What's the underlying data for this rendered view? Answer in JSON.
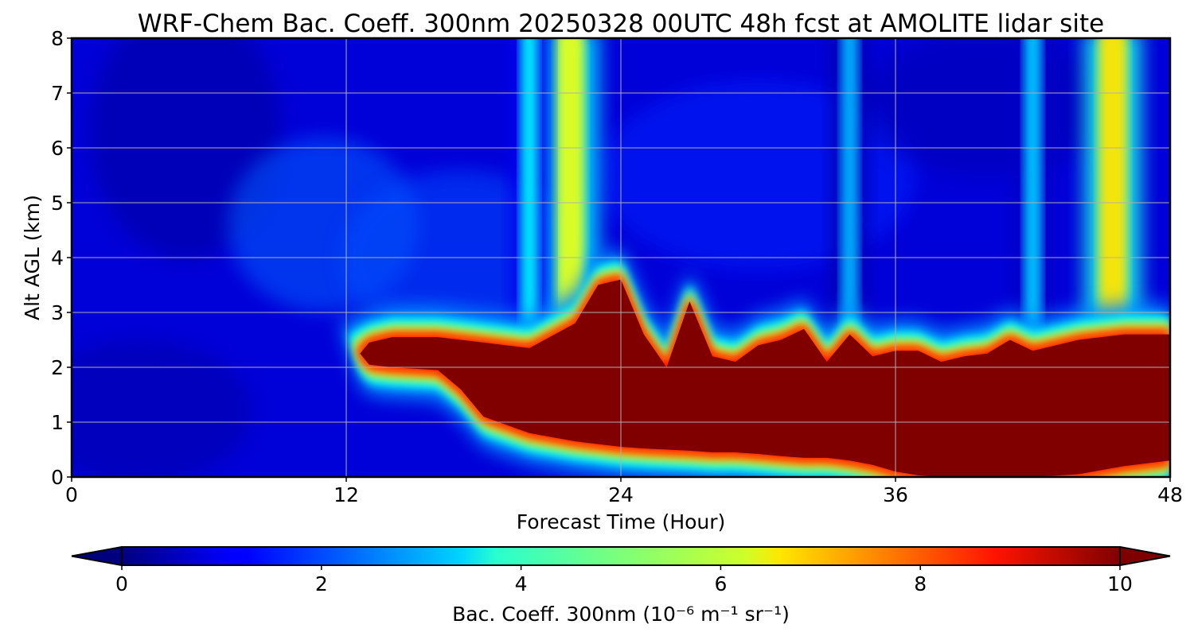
{
  "chart_data": {
    "type": "heatmap",
    "title": "WRF-Chem Bac. Coeff. 300nm  20250328 00UTC 48h fcst at AMOLITE lidar site",
    "xlabel": "Forecast Time (Hour)",
    "ylabel": "Alt AGL (km)",
    "xlim": [
      0,
      48
    ],
    "ylim": [
      0,
      8
    ],
    "xticks": [
      "0",
      "12",
      "24",
      "36",
      "48"
    ],
    "yticks": [
      "0",
      "1",
      "2",
      "3",
      "4",
      "5",
      "6",
      "7",
      "8"
    ],
    "grid": true,
    "colormap": "jet",
    "colorbar": {
      "label": "Bac. Coeff. 300nm",
      "units": "(10⁻⁶ m⁻¹ sr⁻¹)",
      "range": [
        0,
        10
      ],
      "ticks": [
        "0",
        "2",
        "4",
        "6",
        "8",
        "10"
      ],
      "extend": "both",
      "orientation": "horizontal"
    },
    "features": {
      "elevated_layer": {
        "value": 10,
        "x_hours": [
          12.6,
          13,
          14,
          16,
          17,
          18,
          20,
          22,
          23,
          24,
          25,
          26,
          27,
          28,
          29,
          30,
          31,
          32,
          33,
          34,
          35,
          36,
          37,
          38,
          39,
          40,
          41,
          42,
          44,
          46,
          48
        ],
        "bottom_km": [
          2.25,
          2.05,
          2.0,
          1.95,
          1.6,
          1.1,
          0.8,
          0.65,
          0.6,
          0.55,
          0.52,
          0.5,
          0.48,
          0.45,
          0.45,
          0.42,
          0.38,
          0.35,
          0.35,
          0.3,
          0.22,
          0.1,
          0.03,
          0,
          0,
          0,
          0,
          0,
          0.05,
          0.2,
          0.3
        ],
        "top_km": [
          2.25,
          2.45,
          2.55,
          2.55,
          2.5,
          2.45,
          2.35,
          2.8,
          3.5,
          3.6,
          2.6,
          2.0,
          3.2,
          2.2,
          2.1,
          2.4,
          2.5,
          2.7,
          2.1,
          2.6,
          2.2,
          2.3,
          2.3,
          2.1,
          2.2,
          2.25,
          2.5,
          2.3,
          2.5,
          2.6,
          2.6
        ]
      },
      "vertical_plumes": [
        {
          "x_hours": 21.8,
          "value": 6.0
        },
        {
          "x_hours": 20.0,
          "value": 3.6
        },
        {
          "x_hours": 34.0,
          "value": 3.0
        },
        {
          "x_hours": 42.0,
          "value": 3.2
        },
        {
          "x_hours": 45.5,
          "value": 6.5
        }
      ]
    }
  }
}
